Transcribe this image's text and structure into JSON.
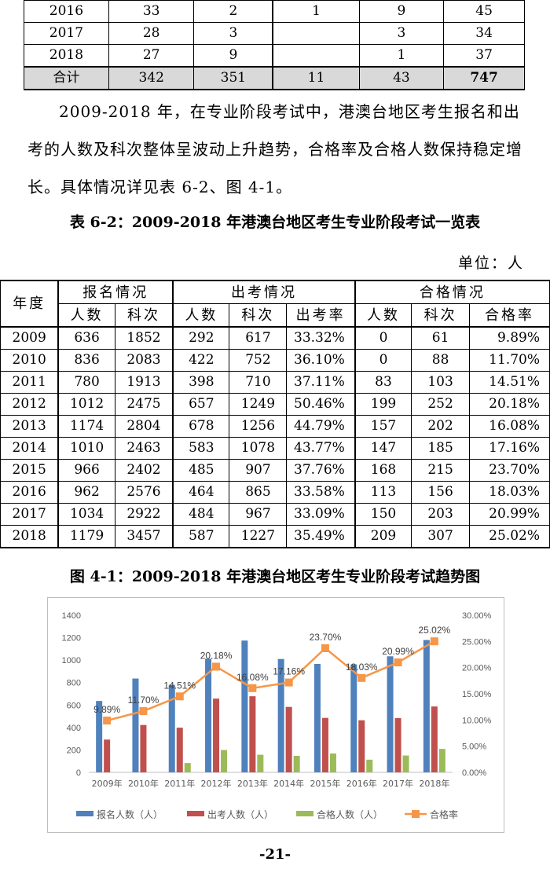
{
  "top_table": {
    "rows": [
      [
        "2016",
        "33",
        "2",
        "1",
        "9",
        "45"
      ],
      [
        "2017",
        "28",
        "3",
        "",
        "3",
        "34"
      ],
      [
        "2018",
        "27",
        "9",
        "",
        "1",
        "37"
      ]
    ],
    "total": [
      "合计",
      "342",
      "351",
      "11",
      "43",
      "747"
    ]
  },
  "paragraph": "2009-2018 年，在专业阶段考试中，港澳台地区考生报名和出考的人数及科次整体呈波动上升趋势，合格率及合格人数保持稳定增长。具体情况详见表 6-2、图 4-1。",
  "table_title": "表 6-2：2009-2018 年港澳台地区考生专业阶段考试一览表",
  "unit": "单位：人",
  "main_table": {
    "year_header": "年度",
    "groups": [
      "报名情况",
      "出考情况",
      "合格情况"
    ],
    "subheaders": [
      "人数",
      "科次",
      "人数",
      "科次",
      "出考率",
      "人数",
      "科次",
      "合格率"
    ],
    "rows": [
      [
        "2009",
        "636",
        "1852",
        "292",
        "617",
        "33.32%",
        "0",
        "61",
        "9.89%"
      ],
      [
        "2010",
        "836",
        "2083",
        "422",
        "752",
        "36.10%",
        "0",
        "88",
        "11.70%"
      ],
      [
        "2011",
        "780",
        "1913",
        "398",
        "710",
        "37.11%",
        "83",
        "103",
        "14.51%"
      ],
      [
        "2012",
        "1012",
        "2475",
        "657",
        "1249",
        "50.46%",
        "199",
        "252",
        "20.18%"
      ],
      [
        "2013",
        "1174",
        "2804",
        "678",
        "1256",
        "44.79%",
        "157",
        "202",
        "16.08%"
      ],
      [
        "2014",
        "1010",
        "2463",
        "583",
        "1078",
        "43.77%",
        "147",
        "185",
        "17.16%"
      ],
      [
        "2015",
        "966",
        "2402",
        "485",
        "907",
        "37.76%",
        "168",
        "215",
        "23.70%"
      ],
      [
        "2016",
        "962",
        "2576",
        "464",
        "865",
        "33.58%",
        "113",
        "156",
        "18.03%"
      ],
      [
        "2017",
        "1034",
        "2922",
        "484",
        "967",
        "33.09%",
        "150",
        "203",
        "20.99%"
      ],
      [
        "2018",
        "1179",
        "3457",
        "587",
        "1227",
        "35.49%",
        "209",
        "307",
        "25.02%"
      ]
    ]
  },
  "figure_title": "图 4-1：2009-2018 年港澳台地区考生专业阶段考试趋势图",
  "page_number": "-21-",
  "chart_data": {
    "type": "bar",
    "categories": [
      "2009年",
      "2010年",
      "2011年",
      "2012年",
      "2013年",
      "2014年",
      "2015年",
      "2016年",
      "2017年",
      "2018年"
    ],
    "series": [
      {
        "name": "报名人数（人）",
        "type": "bar",
        "axis": "left",
        "color": "#4f81bd",
        "values": [
          636,
          836,
          780,
          1012,
          1174,
          1010,
          966,
          962,
          1034,
          1179
        ]
      },
      {
        "name": "出考人数（人）",
        "type": "bar",
        "axis": "left",
        "color": "#c0504d",
        "values": [
          292,
          422,
          398,
          657,
          678,
          583,
          485,
          464,
          484,
          587
        ]
      },
      {
        "name": "合格人数（人）",
        "type": "bar",
        "axis": "left",
        "color": "#9bbb59",
        "values": [
          0,
          0,
          83,
          199,
          157,
          147,
          168,
          113,
          150,
          209
        ]
      },
      {
        "name": "合格率",
        "type": "line",
        "axis": "right",
        "color": "#f79646",
        "values": [
          9.89,
          11.7,
          14.51,
          20.18,
          16.08,
          17.16,
          23.7,
          18.03,
          20.99,
          25.02
        ]
      }
    ],
    "line_labels": [
      "9.89%",
      "11.70%",
      "14.51%",
      "20.18%",
      "16.08%",
      "17.16%",
      "23.70%",
      "18.03%",
      "20.99%",
      "25.02%"
    ],
    "y_left": {
      "ticks": [
        "0",
        "200",
        "400",
        "600",
        "800",
        "1000",
        "1200",
        "1400"
      ],
      "range": [
        0,
        1400
      ]
    },
    "y_right": {
      "ticks": [
        "0.00%",
        "5.00%",
        "10.00%",
        "15.00%",
        "20.00%",
        "25.00%",
        "30.00%"
      ],
      "range": [
        0,
        30
      ]
    },
    "legend_position": "bottom",
    "grid": false
  }
}
